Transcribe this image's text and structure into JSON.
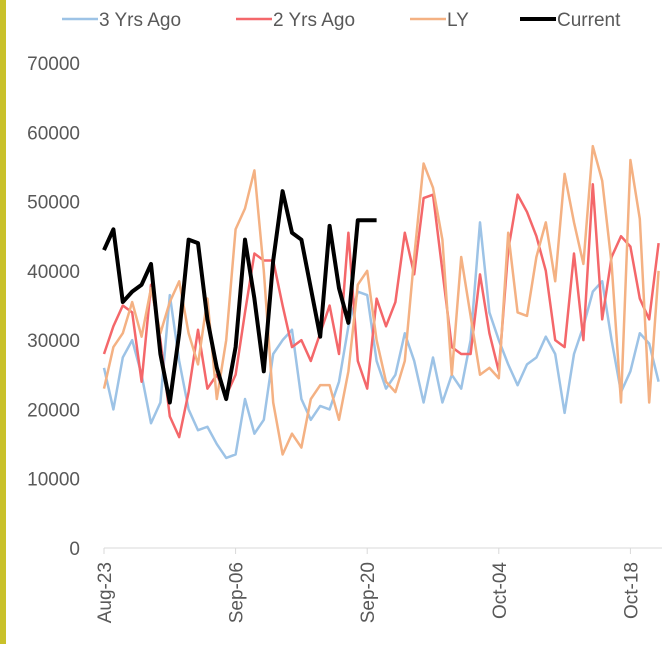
{
  "chart_data": {
    "type": "line",
    "categories": [
      "Aug-23",
      null,
      null,
      null,
      null,
      null,
      null,
      null,
      null,
      null,
      null,
      null,
      null,
      null,
      "Sep-06",
      null,
      null,
      null,
      null,
      null,
      null,
      null,
      null,
      null,
      null,
      null,
      null,
      null,
      "Sep-20",
      null,
      null,
      null,
      null,
      null,
      null,
      null,
      null,
      null,
      null,
      null,
      null,
      null,
      "Oct-04",
      null,
      null,
      null,
      null,
      null,
      null,
      null,
      null,
      null,
      null,
      null,
      null,
      null,
      "Oct-18",
      null,
      null,
      null
    ],
    "ylim": [
      0,
      70000
    ],
    "yticks": [
      0,
      10000,
      20000,
      30000,
      40000,
      50000,
      60000,
      70000
    ],
    "grid": false,
    "series": [
      {
        "name": "3 Yrs Ago",
        "color": "#9dc3e6",
        "values": [
          26000,
          20000,
          27500,
          30000,
          25000,
          18000,
          21000,
          36500,
          27000,
          20000,
          17000,
          17500,
          15000,
          13000,
          13500,
          21500,
          16500,
          18500,
          28000,
          30000,
          31500,
          21500,
          18500,
          20500,
          20000,
          24000,
          32000,
          37000,
          36500,
          27000,
          23000,
          25000,
          31000,
          27000,
          21000,
          27500,
          21000,
          25000,
          23000,
          30000,
          47000,
          34000,
          30000,
          26500,
          23500,
          26500,
          27500,
          30500,
          28000,
          19500,
          28000,
          32000,
          37000,
          38500,
          30000,
          22500,
          25500,
          31000,
          29500,
          24000
        ]
      },
      {
        "name": "2 Yrs Ago",
        "color": "#f4676a",
        "values": [
          28000,
          32000,
          35000,
          34000,
          24000,
          38000,
          30000,
          19000,
          16000,
          22500,
          31500,
          23000,
          25000,
          22000,
          25000,
          34000,
          42500,
          41500,
          41500,
          35000,
          29000,
          30000,
          27000,
          31000,
          35000,
          28000,
          45500,
          27000,
          23000,
          36000,
          32000,
          35500,
          45500,
          39500,
          50500,
          51000,
          40000,
          29000,
          28000,
          28000,
          39500,
          31000,
          25500,
          43000,
          51000,
          48500,
          45000,
          40000,
          30000,
          29000,
          42500,
          30000,
          52500,
          33000,
          42000,
          45000,
          43500,
          36000,
          33000,
          44000
        ]
      },
      {
        "name": "LY",
        "color": "#f4b183",
        "values": [
          23000,
          29000,
          31000,
          35500,
          30500,
          37500,
          31000,
          35500,
          38500,
          31000,
          26500,
          36000,
          21500,
          30000,
          46000,
          49000,
          54500,
          40000,
          21000,
          13500,
          16500,
          14500,
          21500,
          23500,
          23500,
          18500,
          25500,
          38000,
          40000,
          30000,
          24000,
          22500,
          27000,
          42000,
          55500,
          52000,
          44500,
          25000,
          42000,
          33500,
          25000,
          26000,
          24500,
          45500,
          34000,
          33500,
          42000,
          47000,
          38500,
          54000,
          47000,
          41000,
          58000,
          53000,
          41000,
          21000,
          56000,
          47500,
          21000,
          40000
        ]
      },
      {
        "name": "Current",
        "color": "#000000",
        "values": [
          43000,
          46000,
          35500,
          37000,
          38000,
          41000,
          28000,
          21000,
          31000,
          44500,
          44000,
          33000,
          26000,
          21500,
          29000,
          44500,
          36000,
          25500,
          41500,
          51500,
          45500,
          44500,
          37500,
          30500,
          46500,
          37500,
          32500,
          47300,
          47300,
          47300,
          null,
          null,
          null,
          null,
          null,
          null,
          null,
          null,
          null,
          null,
          null,
          null,
          null,
          null,
          null,
          null,
          null,
          null,
          null,
          null,
          null,
          null,
          null,
          null,
          null,
          null,
          null,
          null,
          null,
          null
        ]
      }
    ]
  }
}
